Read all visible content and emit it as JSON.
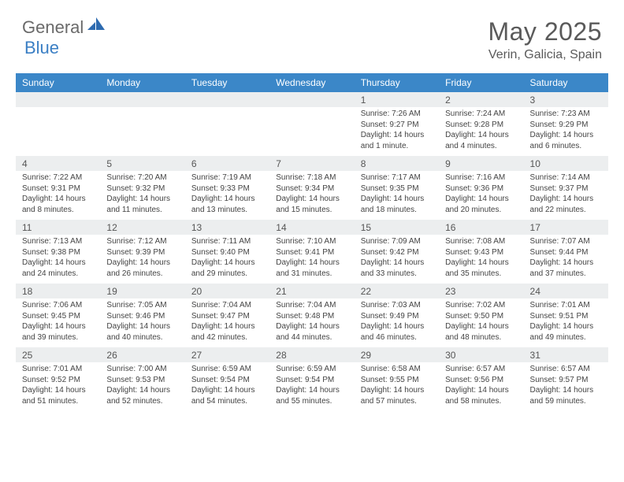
{
  "brand": {
    "name1": "General",
    "name2": "Blue"
  },
  "title": "May 2025",
  "location": "Verin, Galicia, Spain",
  "colors": {
    "header_bg": "#3b87c8",
    "daynum_bg": "#eceeef",
    "border": "#b8bcbf",
    "text": "#444444",
    "title_text": "#5a5a5a",
    "brand_grey": "#6a6a6a",
    "brand_blue": "#3b7fc4"
  },
  "weekdays": [
    "Sunday",
    "Monday",
    "Tuesday",
    "Wednesday",
    "Thursday",
    "Friday",
    "Saturday"
  ],
  "weeks": [
    {
      "nums": [
        "",
        "",
        "",
        "",
        "1",
        "2",
        "3"
      ],
      "cells": [
        {},
        {},
        {},
        {},
        {
          "sunrise": "Sunrise: 7:26 AM",
          "sunset": "Sunset: 9:27 PM",
          "daylight": "Daylight: 14 hours and 1 minute."
        },
        {
          "sunrise": "Sunrise: 7:24 AM",
          "sunset": "Sunset: 9:28 PM",
          "daylight": "Daylight: 14 hours and 4 minutes."
        },
        {
          "sunrise": "Sunrise: 7:23 AM",
          "sunset": "Sunset: 9:29 PM",
          "daylight": "Daylight: 14 hours and 6 minutes."
        }
      ]
    },
    {
      "nums": [
        "4",
        "5",
        "6",
        "7",
        "8",
        "9",
        "10"
      ],
      "cells": [
        {
          "sunrise": "Sunrise: 7:22 AM",
          "sunset": "Sunset: 9:31 PM",
          "daylight": "Daylight: 14 hours and 8 minutes."
        },
        {
          "sunrise": "Sunrise: 7:20 AM",
          "sunset": "Sunset: 9:32 PM",
          "daylight": "Daylight: 14 hours and 11 minutes."
        },
        {
          "sunrise": "Sunrise: 7:19 AM",
          "sunset": "Sunset: 9:33 PM",
          "daylight": "Daylight: 14 hours and 13 minutes."
        },
        {
          "sunrise": "Sunrise: 7:18 AM",
          "sunset": "Sunset: 9:34 PM",
          "daylight": "Daylight: 14 hours and 15 minutes."
        },
        {
          "sunrise": "Sunrise: 7:17 AM",
          "sunset": "Sunset: 9:35 PM",
          "daylight": "Daylight: 14 hours and 18 minutes."
        },
        {
          "sunrise": "Sunrise: 7:16 AM",
          "sunset": "Sunset: 9:36 PM",
          "daylight": "Daylight: 14 hours and 20 minutes."
        },
        {
          "sunrise": "Sunrise: 7:14 AM",
          "sunset": "Sunset: 9:37 PM",
          "daylight": "Daylight: 14 hours and 22 minutes."
        }
      ]
    },
    {
      "nums": [
        "11",
        "12",
        "13",
        "14",
        "15",
        "16",
        "17"
      ],
      "cells": [
        {
          "sunrise": "Sunrise: 7:13 AM",
          "sunset": "Sunset: 9:38 PM",
          "daylight": "Daylight: 14 hours and 24 minutes."
        },
        {
          "sunrise": "Sunrise: 7:12 AM",
          "sunset": "Sunset: 9:39 PM",
          "daylight": "Daylight: 14 hours and 26 minutes."
        },
        {
          "sunrise": "Sunrise: 7:11 AM",
          "sunset": "Sunset: 9:40 PM",
          "daylight": "Daylight: 14 hours and 29 minutes."
        },
        {
          "sunrise": "Sunrise: 7:10 AM",
          "sunset": "Sunset: 9:41 PM",
          "daylight": "Daylight: 14 hours and 31 minutes."
        },
        {
          "sunrise": "Sunrise: 7:09 AM",
          "sunset": "Sunset: 9:42 PM",
          "daylight": "Daylight: 14 hours and 33 minutes."
        },
        {
          "sunrise": "Sunrise: 7:08 AM",
          "sunset": "Sunset: 9:43 PM",
          "daylight": "Daylight: 14 hours and 35 minutes."
        },
        {
          "sunrise": "Sunrise: 7:07 AM",
          "sunset": "Sunset: 9:44 PM",
          "daylight": "Daylight: 14 hours and 37 minutes."
        }
      ]
    },
    {
      "nums": [
        "18",
        "19",
        "20",
        "21",
        "22",
        "23",
        "24"
      ],
      "cells": [
        {
          "sunrise": "Sunrise: 7:06 AM",
          "sunset": "Sunset: 9:45 PM",
          "daylight": "Daylight: 14 hours and 39 minutes."
        },
        {
          "sunrise": "Sunrise: 7:05 AM",
          "sunset": "Sunset: 9:46 PM",
          "daylight": "Daylight: 14 hours and 40 minutes."
        },
        {
          "sunrise": "Sunrise: 7:04 AM",
          "sunset": "Sunset: 9:47 PM",
          "daylight": "Daylight: 14 hours and 42 minutes."
        },
        {
          "sunrise": "Sunrise: 7:04 AM",
          "sunset": "Sunset: 9:48 PM",
          "daylight": "Daylight: 14 hours and 44 minutes."
        },
        {
          "sunrise": "Sunrise: 7:03 AM",
          "sunset": "Sunset: 9:49 PM",
          "daylight": "Daylight: 14 hours and 46 minutes."
        },
        {
          "sunrise": "Sunrise: 7:02 AM",
          "sunset": "Sunset: 9:50 PM",
          "daylight": "Daylight: 14 hours and 48 minutes."
        },
        {
          "sunrise": "Sunrise: 7:01 AM",
          "sunset": "Sunset: 9:51 PM",
          "daylight": "Daylight: 14 hours and 49 minutes."
        }
      ]
    },
    {
      "nums": [
        "25",
        "26",
        "27",
        "28",
        "29",
        "30",
        "31"
      ],
      "cells": [
        {
          "sunrise": "Sunrise: 7:01 AM",
          "sunset": "Sunset: 9:52 PM",
          "daylight": "Daylight: 14 hours and 51 minutes."
        },
        {
          "sunrise": "Sunrise: 7:00 AM",
          "sunset": "Sunset: 9:53 PM",
          "daylight": "Daylight: 14 hours and 52 minutes."
        },
        {
          "sunrise": "Sunrise: 6:59 AM",
          "sunset": "Sunset: 9:54 PM",
          "daylight": "Daylight: 14 hours and 54 minutes."
        },
        {
          "sunrise": "Sunrise: 6:59 AM",
          "sunset": "Sunset: 9:54 PM",
          "daylight": "Daylight: 14 hours and 55 minutes."
        },
        {
          "sunrise": "Sunrise: 6:58 AM",
          "sunset": "Sunset: 9:55 PM",
          "daylight": "Daylight: 14 hours and 57 minutes."
        },
        {
          "sunrise": "Sunrise: 6:57 AM",
          "sunset": "Sunset: 9:56 PM",
          "daylight": "Daylight: 14 hours and 58 minutes."
        },
        {
          "sunrise": "Sunrise: 6:57 AM",
          "sunset": "Sunset: 9:57 PM",
          "daylight": "Daylight: 14 hours and 59 minutes."
        }
      ]
    }
  ]
}
